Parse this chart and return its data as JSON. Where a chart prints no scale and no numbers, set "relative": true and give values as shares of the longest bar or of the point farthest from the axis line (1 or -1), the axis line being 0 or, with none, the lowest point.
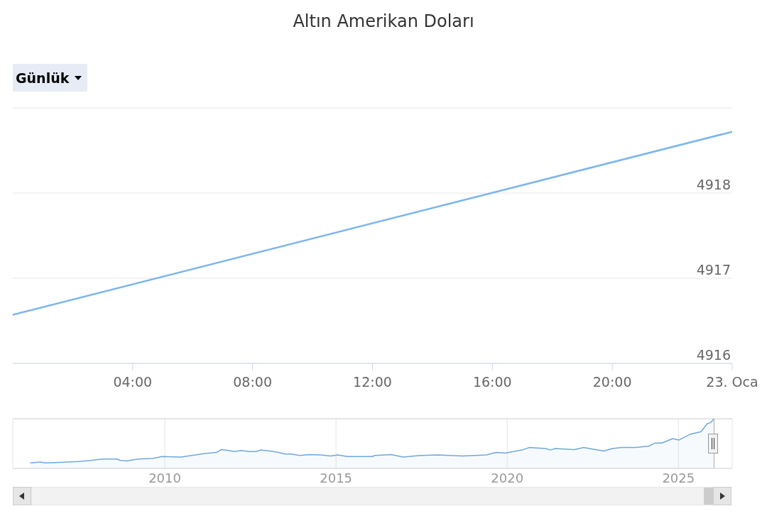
{
  "chart_data": [
    {
      "type": "line",
      "title": "Altın Amerikan Doları",
      "annotations": [
        "Günlük"
      ],
      "x": [
        "--01-22T00:00",
        "--01-23T00:00"
      ],
      "series": [
        {
          "color": "#7cb5ec",
          "values": [
            4916.57,
            4918.72
          ]
        }
      ],
      "xlim": [
        "--01-22T00:00",
        "--01-23T00:00"
      ],
      "xticks": [
        {
          "value": "--01-22T04:00",
          "label": "04:00"
        },
        {
          "value": "--01-22T08:00",
          "label": "08:00"
        },
        {
          "value": "--01-22T12:00",
          "label": "12:00"
        },
        {
          "value": "--01-22T16:00",
          "label": "16:00"
        },
        {
          "value": "--01-22T20:00",
          "label": "20:00"
        },
        {
          "value": "--01-23T00:00",
          "label": "23. Oca"
        }
      ],
      "ylim": [
        4916,
        4919
      ],
      "yticks": [
        4916,
        4917,
        4918,
        {
          "value": 4919,
          "label": null
        }
      ],
      "grid": "y",
      "marker": "none",
      "line_style": "solid"
    },
    {
      "type": "area",
      "relative": true,
      "x": [
        2006.07,
        2006.38,
        2006.48,
        2006.93,
        2007.49,
        2007.84,
        2008.18,
        2008.6,
        2008.7,
        2008.88,
        2009.22,
        2009.64,
        2009.92,
        2010.47,
        2011.17,
        2011.51,
        2011.65,
        2011.86,
        2012.03,
        2012.21,
        2012.48,
        2012.66,
        2012.8,
        2013.07,
        2013.28,
        2013.52,
        2013.7,
        2013.94,
        2014.22,
        2014.56,
        2014.84,
        2015.05,
        2015.33,
        2015.6,
        2016.06,
        2016.13,
        2016.62,
        2016.96,
        2017.45,
        2018.0,
        2018.7,
        2019.39,
        2019.67,
        2019.95,
        2020.43,
        2020.64,
        2021.12,
        2021.26,
        2021.4,
        2021.96,
        2022.23,
        2022.58,
        2022.82,
        2023.07,
        2023.34,
        2023.76,
        2024.14,
        2024.31,
        2024.52,
        2024.83,
        2025.01,
        2025.35,
        2025.66,
        2025.84,
        2025.94,
        2026.04
      ],
      "series": [
        {
          "color": "#6fa8dc",
          "values": [
            0.11,
            0.13,
            0.11,
            0.12,
            0.14,
            0.16,
            0.19,
            0.19,
            0.16,
            0.15,
            0.19,
            0.2,
            0.24,
            0.23,
            0.3,
            0.32,
            0.38,
            0.36,
            0.34,
            0.36,
            0.34,
            0.34,
            0.37,
            0.35,
            0.33,
            0.29,
            0.29,
            0.26,
            0.28,
            0.27,
            0.25,
            0.27,
            0.24,
            0.24,
            0.24,
            0.26,
            0.28,
            0.23,
            0.26,
            0.27,
            0.25,
            0.27,
            0.32,
            0.31,
            0.37,
            0.42,
            0.4,
            0.37,
            0.4,
            0.38,
            0.42,
            0.38,
            0.35,
            0.4,
            0.42,
            0.42,
            0.45,
            0.51,
            0.51,
            0.6,
            0.57,
            0.69,
            0.74,
            0.9,
            0.92,
            1
          ]
        }
      ],
      "xlim": [
        2005.56,
        2026.57
      ],
      "xticks": [
        2010,
        2015,
        2020,
        2025
      ],
      "ref_lines": [
        {
          "axis": "x",
          "value": 2026.04,
          "color": "#aaaaaa"
        }
      ],
      "grid": "x",
      "tick_labels": "x",
      "marker": "none",
      "line_style": "solid"
    }
  ]
}
